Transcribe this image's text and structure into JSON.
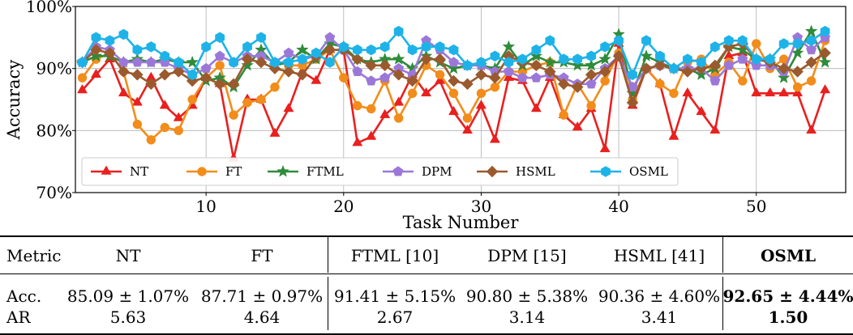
{
  "chart_data": {
    "type": "line",
    "xlabel": "Task Number",
    "ylabel": "Accuracy",
    "xticks": [
      10,
      20,
      30,
      40,
      50
    ],
    "yticks": [
      "70%",
      "80%",
      "90%",
      "100%"
    ],
    "xlim": [
      0.5,
      56.5
    ],
    "ylim": [
      70,
      100
    ],
    "grid": true,
    "legend_position": "lower-left",
    "x": [
      1,
      2,
      3,
      4,
      5,
      6,
      7,
      8,
      9,
      10,
      11,
      12,
      13,
      14,
      15,
      16,
      17,
      18,
      19,
      20,
      21,
      22,
      23,
      24,
      25,
      26,
      27,
      28,
      29,
      30,
      31,
      32,
      33,
      34,
      35,
      36,
      37,
      38,
      39,
      40,
      41,
      42,
      43,
      44,
      45,
      46,
      47,
      48,
      49,
      50,
      51,
      52,
      53,
      54,
      55
    ],
    "series": [
      {
        "name": "NT",
        "color": "#e8201f",
        "marker": "triangle",
        "values": [
          86.5,
          89,
          91.5,
          86,
          84.5,
          88.5,
          84,
          82,
          84,
          88.5,
          87.5,
          75.5,
          85,
          85,
          79.5,
          83.5,
          89.5,
          88,
          93,
          93,
          78,
          79,
          82.5,
          84.5,
          89,
          86,
          88,
          83,
          80,
          84,
          78.5,
          88.5,
          88,
          83.5,
          88.5,
          82.5,
          80.5,
          83.5,
          77,
          94,
          84,
          90,
          87.5,
          79,
          86,
          83,
          80,
          92,
          92.5,
          86,
          86,
          86,
          86,
          80,
          86.5
        ]
      },
      {
        "name": "FT",
        "color": "#f28c1a",
        "marker": "circle",
        "values": [
          88.5,
          91.5,
          92.5,
          89.5,
          81,
          78.5,
          80.5,
          80,
          85,
          88.5,
          90.5,
          82.5,
          84.5,
          85,
          87,
          90.5,
          90.5,
          91.5,
          93,
          88.5,
          84,
          83.5,
          88,
          82,
          86,
          90.5,
          89,
          86,
          82,
          86,
          87,
          89.5,
          89.5,
          90.5,
          91,
          82.5,
          87.5,
          84,
          88,
          92.5,
          85,
          90,
          87.5,
          86,
          91,
          91.5,
          89,
          91,
          88,
          94,
          90,
          91.5,
          87,
          88,
          94.5
        ]
      },
      {
        "name": "FTML",
        "color": "#2e8b3a",
        "marker": "star",
        "values": [
          91,
          92,
          92,
          91,
          91.5,
          91,
          91.5,
          91,
          91,
          88,
          88.5,
          87,
          90.5,
          93,
          90.5,
          91,
          93,
          91.5,
          94,
          93.5,
          91.5,
          91,
          91.5,
          91.5,
          90,
          92,
          91,
          90,
          90.5,
          90.5,
          90,
          93.5,
          90.5,
          92,
          91,
          91,
          90.5,
          90.5,
          91.5,
          95.5,
          86,
          92,
          91,
          90,
          90,
          89,
          90,
          93.5,
          93,
          91.5,
          91.5,
          88.5,
          92.5,
          96,
          91
        ]
      },
      {
        "name": "DPM",
        "color": "#9b78d8",
        "marker": "pentagon",
        "values": [
          91,
          93.5,
          93,
          91,
          91,
          91,
          91,
          90,
          89,
          90,
          92,
          91,
          92,
          92,
          91,
          92.5,
          91.5,
          92,
          95,
          93,
          89.5,
          88,
          88.5,
          90,
          89,
          94.5,
          93,
          91,
          90.5,
          90.5,
          89.5,
          89.5,
          88.5,
          88.5,
          89,
          88.5,
          87.5,
          87.5,
          90,
          92,
          87,
          90,
          90.5,
          90,
          90,
          90,
          88,
          90.5,
          91.5,
          90.5,
          90.5,
          89.5,
          95,
          93,
          95
        ]
      },
      {
        "name": "HSML",
        "color": "#9a5a2e",
        "marker": "diamond",
        "values": [
          91,
          93,
          92.5,
          89.5,
          89,
          87.5,
          89,
          89.5,
          88,
          88.5,
          87.5,
          87.5,
          91.5,
          91,
          90,
          89.5,
          89,
          92,
          93,
          93,
          91.5,
          90.5,
          90.5,
          89,
          88,
          91.5,
          91.5,
          88,
          87.5,
          89,
          88.5,
          92,
          91,
          90.5,
          89.5,
          87.5,
          87,
          89,
          89.5,
          92,
          84.5,
          90,
          90.5,
          90,
          89.5,
          90,
          90.5,
          93.5,
          94,
          91.5,
          91,
          90,
          89.5,
          91,
          92.5
        ]
      },
      {
        "name": "OSML",
        "color": "#1eb3e8",
        "marker": "hexagon",
        "values": [
          91,
          95,
          94.5,
          95.5,
          93,
          93.5,
          92,
          91,
          89,
          93.5,
          95,
          91,
          93.5,
          95,
          91,
          91,
          91.5,
          92.5,
          91,
          93.5,
          93,
          93,
          93.5,
          96,
          93,
          93.5,
          93.5,
          93,
          90.5,
          91,
          92,
          91,
          91.5,
          93,
          94.5,
          91.5,
          91.5,
          92,
          93.5,
          94.5,
          89,
          94.5,
          92,
          90,
          91.5,
          91,
          93.5,
          94.5,
          94.5,
          91.5,
          91.5,
          94,
          94,
          94.5,
          96
        ]
      }
    ]
  },
  "table": {
    "header": [
      "Metric",
      "NT",
      "FT",
      "FTML [10]",
      "DPM [15]",
      "HSML [41]",
      "OSML"
    ],
    "rows": [
      [
        "Acc.",
        "85.09 ± 1.07%",
        "87.71 ± 0.97%",
        "91.41 ± 5.15%",
        "90.80 ± 5.38%",
        "90.36 ± 4.60%",
        "92.65 ± 4.44%"
      ],
      [
        "AR",
        "5.63",
        "4.64",
        "2.67",
        "3.14",
        "3.41",
        "1.50"
      ]
    ]
  }
}
